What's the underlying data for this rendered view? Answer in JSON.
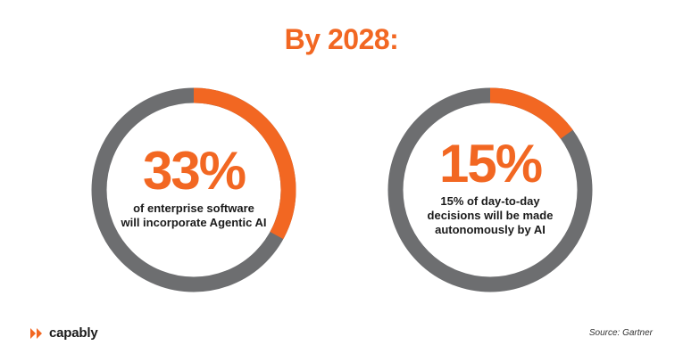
{
  "header": {
    "title": "By 2028:"
  },
  "colors": {
    "accent": "#f26722",
    "track": "#6d6e70",
    "text": "#1a1a1a"
  },
  "chart_data": [
    {
      "type": "pie",
      "variant": "donut",
      "values": [
        33,
        67
      ],
      "highlight_value": 33,
      "label": "33%",
      "description_lines": [
        "of enterprise software",
        "will incorporate Agentic AI"
      ]
    },
    {
      "type": "pie",
      "variant": "donut",
      "values": [
        15,
        85
      ],
      "highlight_value": 15,
      "label": "15%",
      "description_lines": [
        "15% of day-to-day",
        "decisions will be made",
        "autonomously by AI"
      ]
    }
  ],
  "footer": {
    "brand": "capably",
    "source": "Source: Gartner"
  }
}
